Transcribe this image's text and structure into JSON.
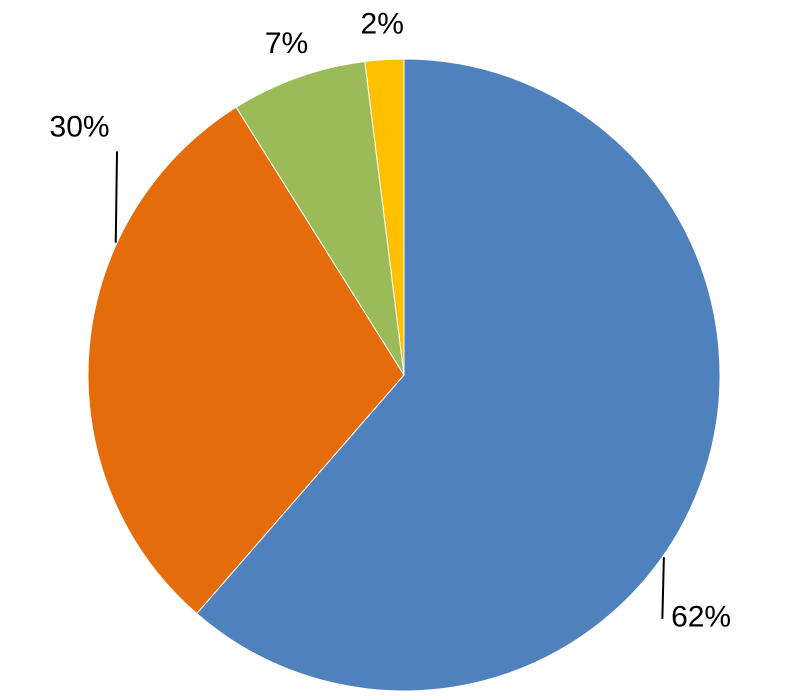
{
  "chart_data": {
    "type": "pie",
    "values": [
      62,
      30,
      7,
      2
    ],
    "value_labels": [
      "62%",
      "30%",
      "7%",
      "2%"
    ],
    "colors": [
      "#4f81bd",
      "#e46c0a",
      "#9bbb59",
      "#ffc000"
    ]
  }
}
